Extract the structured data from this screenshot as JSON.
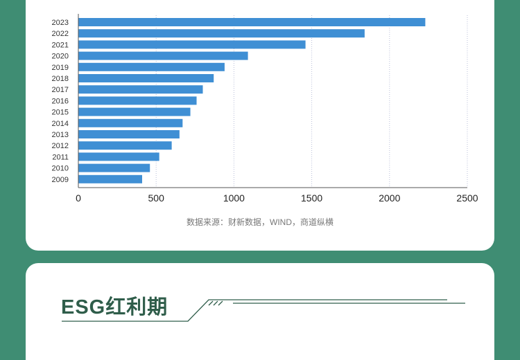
{
  "chart_data": {
    "type": "bar",
    "orientation": "horizontal",
    "categories": [
      "2023",
      "2022",
      "2021",
      "2020",
      "2019",
      "2018",
      "2017",
      "2016",
      "2015",
      "2014",
      "2013",
      "2012",
      "2011",
      "2010",
      "2009"
    ],
    "values": [
      2230,
      1840,
      1460,
      1090,
      940,
      870,
      800,
      760,
      720,
      670,
      650,
      600,
      520,
      460,
      410
    ],
    "xlim": [
      0,
      2500
    ],
    "xticks": [
      "0",
      "500",
      "1000",
      "1500",
      "2000",
      "2500"
    ],
    "bar_color": "#3f8fd4",
    "grid": "vertical dotted",
    "title": "",
    "xlabel": "",
    "ylabel": ""
  },
  "source_note": "数据来源：财新数据，WIND，商道纵横",
  "section": {
    "title": "ESG红利期",
    "title_color": "#2f5d4a"
  },
  "colors": {
    "background": "#3f8d73",
    "card": "#ffffff"
  }
}
